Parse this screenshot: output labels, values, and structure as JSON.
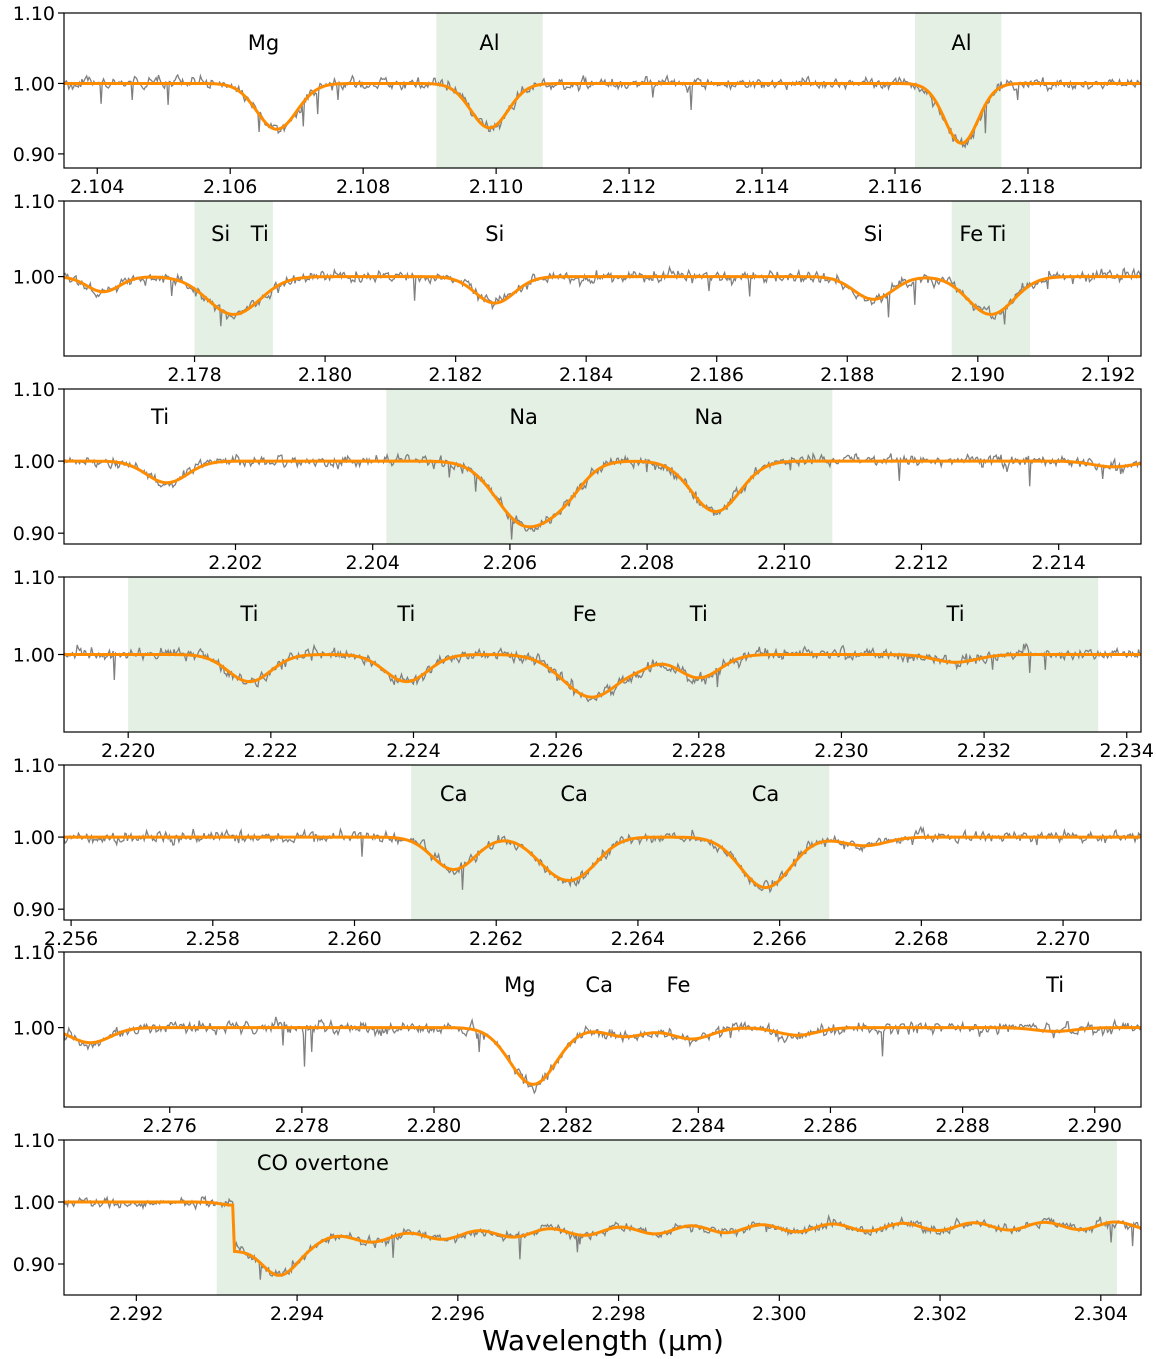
{
  "xlabel": "Wavelength (µm)",
  "colors": {
    "observed": "#808080",
    "model": "#ff8c00",
    "shade": "#e3f0e3",
    "frame": "#000000"
  },
  "chart_data": [
    {
      "type": "line",
      "xlim": [
        2.1035,
        2.1197
      ],
      "ylim": [
        0.88,
        1.1
      ],
      "xticks": [
        "2.104",
        "2.106",
        "2.108",
        "2.110",
        "2.112",
        "2.114",
        "2.116",
        "2.118"
      ],
      "yticks": [
        "0.90",
        "1.00",
        "1.10"
      ],
      "shaded": [
        [
          2.1091,
          2.1107
        ],
        [
          2.1163,
          2.1176
        ]
      ],
      "lines": [
        {
          "label": "Mg",
          "center": 2.1067,
          "depth": 0.065,
          "width": 0.0003,
          "label_x": 2.1065
        },
        {
          "label": "Al",
          "center": 2.1099,
          "depth": 0.063,
          "width": 0.00028,
          "label_x": 2.1099
        },
        {
          "label": "Al",
          "center": 2.117,
          "depth": 0.085,
          "width": 0.00025,
          "label_x": 2.117
        }
      ]
    },
    {
      "type": "line",
      "xlim": [
        2.176,
        2.1925
      ],
      "ylim": [
        0.895,
        1.1
      ],
      "xticks": [
        "2.178",
        "2.180",
        "2.182",
        "2.184",
        "2.186",
        "2.188",
        "2.190",
        "2.192"
      ],
      "yticks": [
        "1.00",
        "1.10"
      ],
      "shaded": [
        [
          2.178,
          2.1792
        ],
        [
          2.1896,
          2.1908
        ]
      ],
      "lines": [
        {
          "label": "",
          "center": 2.1766,
          "depth": 0.02,
          "width": 0.00025
        },
        {
          "label": "Si",
          "center": 2.1786,
          "depth": 0.05,
          "width": 0.0004,
          "label_x": 2.1784
        },
        {
          "label": "Ti",
          "center": 2.1788,
          "depth": 0.0,
          "width": 0.0002,
          "label_x": 2.179
        },
        {
          "label": "Si",
          "center": 2.1826,
          "depth": 0.035,
          "width": 0.0003,
          "label_x": 2.1826
        },
        {
          "label": "Si",
          "center": 2.1884,
          "depth": 0.03,
          "width": 0.0003,
          "label_x": 2.1884
        },
        {
          "label": "Fe",
          "center": 2.19,
          "depth": 0.0,
          "width": 0.0002,
          "label_x": 2.1899
        },
        {
          "label": "Ti",
          "center": 2.1902,
          "depth": 0.05,
          "width": 0.00035,
          "label_x": 2.1903
        }
      ]
    },
    {
      "type": "line",
      "xlim": [
        2.1995,
        2.2152
      ],
      "ylim": [
        0.885,
        1.1
      ],
      "xticks": [
        "2.202",
        "2.204",
        "2.206",
        "2.208",
        "2.210",
        "2.212",
        "2.214"
      ],
      "yticks": [
        "0.90",
        "1.00",
        "1.10"
      ],
      "shaded": [
        [
          2.2042,
          2.2107
        ]
      ],
      "lines": [
        {
          "label": "Ti",
          "center": 2.201,
          "depth": 0.03,
          "width": 0.0003,
          "label_x": 2.2009
        },
        {
          "label": "Na",
          "center": 2.2062,
          "depth": 0.085,
          "width": 0.0004,
          "label_x": 2.2062
        },
        {
          "label": "",
          "center": 2.2068,
          "depth": 0.035,
          "width": 0.0003
        },
        {
          "label": "Na",
          "center": 2.209,
          "depth": 0.07,
          "width": 0.00035,
          "label_x": 2.2089
        },
        {
          "label": "",
          "center": 2.2148,
          "depth": 0.008,
          "width": 0.0003
        }
      ]
    },
    {
      "type": "line",
      "xlim": [
        2.2191,
        2.2342
      ],
      "ylim": [
        0.9,
        1.1
      ],
      "xticks": [
        "2.220",
        "2.222",
        "2.224",
        "2.226",
        "2.228",
        "2.230",
        "2.232",
        "2.234"
      ],
      "yticks": [
        "1.00",
        "1.10"
      ],
      "shaded": [
        [
          2.22,
          2.2336
        ]
      ],
      "lines": [
        {
          "label": "Ti",
          "center": 2.2217,
          "depth": 0.035,
          "width": 0.0003,
          "label_x": 2.2217
        },
        {
          "label": "Ti",
          "center": 2.2239,
          "depth": 0.035,
          "width": 0.0003,
          "label_x": 2.2239
        },
        {
          "label": "Fe",
          "center": 2.2265,
          "depth": 0.055,
          "width": 0.0004,
          "label_x": 2.2264
        },
        {
          "label": "",
          "center": 2.2272,
          "depth": 0.008,
          "width": 0.0002
        },
        {
          "label": "Ti",
          "center": 2.228,
          "depth": 0.03,
          "width": 0.0003,
          "label_x": 2.228
        },
        {
          "label": "Ti",
          "center": 2.2316,
          "depth": 0.01,
          "width": 0.0003,
          "label_x": 2.2316
        }
      ]
    },
    {
      "type": "line",
      "xlim": [
        2.2559,
        2.2711
      ],
      "ylim": [
        0.885,
        1.1
      ],
      "xticks": [
        "2.256",
        "2.258",
        "2.260",
        "2.262",
        "2.264",
        "2.266",
        "2.268",
        "2.270"
      ],
      "yticks": [
        "0.90",
        "1.00",
        "1.10"
      ],
      "shaded": [
        [
          2.2608,
          2.2667
        ]
      ],
      "lines": [
        {
          "label": "Ca",
          "center": 2.2614,
          "depth": 0.045,
          "width": 0.0003,
          "label_x": 2.2614
        },
        {
          "label": "",
          "center": 2.2628,
          "depth": 0.035,
          "width": 0.0003
        },
        {
          "label": "Ca",
          "center": 2.2632,
          "depth": 0.04,
          "width": 0.0003,
          "label_x": 2.2631
        },
        {
          "label": "Ca",
          "center": 2.2658,
          "depth": 0.07,
          "width": 0.00035,
          "label_x": 2.2658
        },
        {
          "label": "",
          "center": 2.2672,
          "depth": 0.012,
          "width": 0.0003
        }
      ]
    },
    {
      "type": "line",
      "xlim": [
        2.2744,
        2.2907
      ],
      "ylim": [
        0.895,
        1.1
      ],
      "xticks": [
        "2.276",
        "2.278",
        "2.280",
        "2.282",
        "2.284",
        "2.286",
        "2.288",
        "2.290"
      ],
      "yticks": [
        "1.00",
        "1.10"
      ],
      "shaded": [],
      "lines": [
        {
          "label": "",
          "center": 2.2748,
          "depth": 0.02,
          "width": 0.0003
        },
        {
          "label": "Mg",
          "center": 2.2815,
          "depth": 0.075,
          "width": 0.00035,
          "label_x": 2.2813
        },
        {
          "label": "Ca",
          "center": 2.2829,
          "depth": 0.012,
          "width": 0.0003,
          "label_x": 2.2825
        },
        {
          "label": "Fe",
          "center": 2.2839,
          "depth": 0.015,
          "width": 0.0003,
          "label_x": 2.2837
        },
        {
          "label": "",
          "center": 2.2855,
          "depth": 0.01,
          "width": 0.0003
        },
        {
          "label": "Ti",
          "center": 2.2894,
          "depth": 0.005,
          "width": 0.0003,
          "label_x": 2.2894
        }
      ]
    },
    {
      "type": "line",
      "xlim": [
        2.2911,
        2.3045
      ],
      "ylim": [
        0.85,
        1.1
      ],
      "xticks": [
        "2.292",
        "2.294",
        "2.296",
        "2.298",
        "2.300",
        "2.302",
        "2.304"
      ],
      "yticks": [
        "0.90",
        "1.00",
        "1.10"
      ],
      "shaded": [
        [
          2.293,
          2.3042
        ]
      ],
      "annotation": "CO overtone",
      "co_head": 2.2932,
      "lines": []
    }
  ]
}
